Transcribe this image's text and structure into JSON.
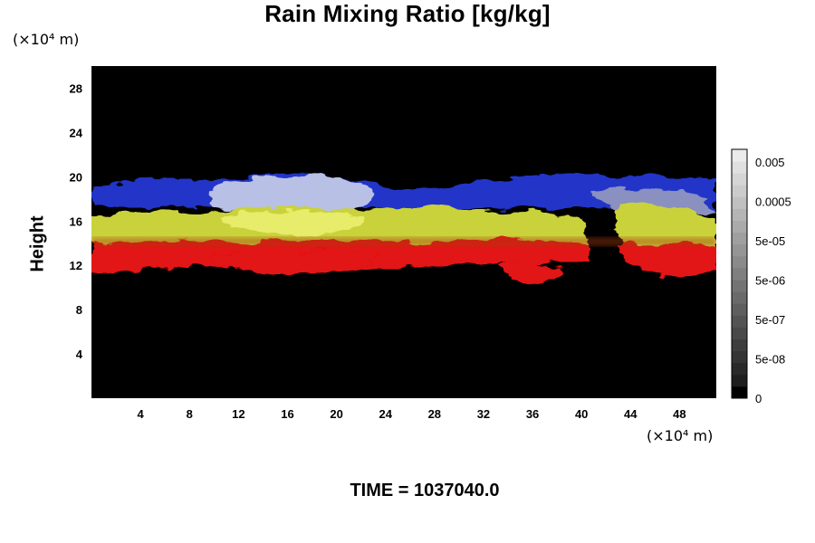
{
  "chart_data": {
    "type": "heatmap",
    "title": "Rain Mixing Ratio [kg/kg]",
    "ylabel": "Height",
    "xlabel": "",
    "x_unit": "(×10⁴ m)",
    "y_unit": "(×10⁴ m)",
    "x_ticks": [
      4,
      8,
      12,
      16,
      20,
      24,
      28,
      32,
      36,
      40,
      44,
      48
    ],
    "y_ticks": [
      4,
      8,
      12,
      16,
      20,
      24,
      28
    ],
    "xlim": [
      0,
      51
    ],
    "ylim": [
      0,
      30
    ],
    "colorbar": {
      "labels": [
        "0.005",
        "0.0005",
        "5e-05",
        "5e-06",
        "5e-07",
        "5e-08",
        "0"
      ],
      "levels": 21
    },
    "bands": [
      {
        "color": "#1f3bd0",
        "range_y": [
          17.8,
          19.6
        ]
      },
      {
        "color": "#d8e040",
        "range_y": [
          13.5,
          17.5
        ]
      },
      {
        "color": "#e51010",
        "range_y": [
          11.0,
          14.0
        ]
      }
    ],
    "background": "#000000",
    "time_label": "TIME = 1037040.0"
  }
}
